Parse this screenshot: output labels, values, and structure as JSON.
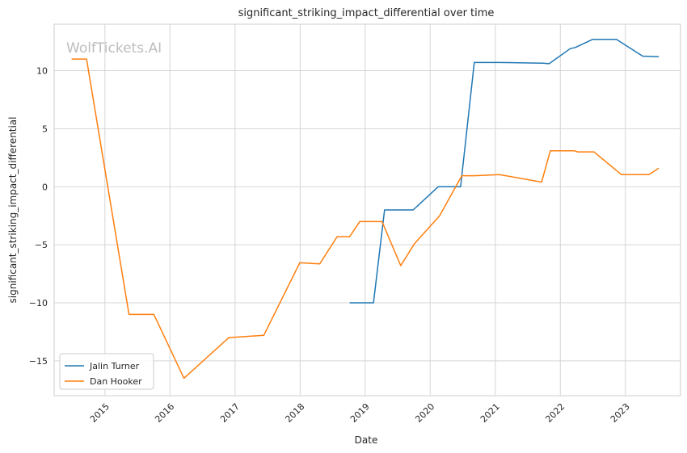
{
  "chart_data": {
    "type": "line",
    "title": "significant_striking_impact_differential over time",
    "xlabel": "Date",
    "ylabel": "significant_striking_impact_differential",
    "watermark": "WolfTickets.AI",
    "xlim": [
      "2014-03-22",
      "2023-11-07"
    ],
    "ylim": [
      -18.0,
      14.0
    ],
    "x_ticks": [
      "2015",
      "2016",
      "2017",
      "2018",
      "2019",
      "2020",
      "2021",
      "2022",
      "2023"
    ],
    "y_ticks": [
      -15,
      -10,
      -5,
      0,
      5,
      10
    ],
    "grid": true,
    "legend_position": "lower-left",
    "series": [
      {
        "name": "Jalin Turner",
        "color": "#1f77b4",
        "points": [
          [
            "2018-10-06",
            -10.0
          ],
          [
            "2019-02-17",
            -10.0
          ],
          [
            "2019-04-20",
            -2.0
          ],
          [
            "2019-09-28",
            -2.0
          ],
          [
            "2020-02-15",
            0.0
          ],
          [
            "2020-06-20",
            0.0
          ],
          [
            "2020-09-05",
            10.7
          ],
          [
            "2021-01-20",
            10.7
          ],
          [
            "2021-09-25",
            10.65
          ],
          [
            "2021-10-30",
            10.6
          ],
          [
            "2022-02-26",
            11.9
          ],
          [
            "2022-03-26",
            12.0
          ],
          [
            "2022-07-02",
            12.7
          ],
          [
            "2022-11-12",
            12.7
          ],
          [
            "2023-04-08",
            11.25
          ],
          [
            "2023-07-08",
            11.2
          ]
        ]
      },
      {
        "name": "Dan Hooker",
        "color": "#ff7f0e",
        "points": [
          [
            "2014-06-28",
            11.0
          ],
          [
            "2014-09-20",
            11.0
          ],
          [
            "2015-05-16",
            -11.0
          ],
          [
            "2015-10-03",
            -11.0
          ],
          [
            "2016-03-20",
            -16.5
          ],
          [
            "2016-11-27",
            -13.0
          ],
          [
            "2017-06-11",
            -12.8
          ],
          [
            "2017-12-30",
            -6.55
          ],
          [
            "2018-04-21",
            -6.65
          ],
          [
            "2018-07-28",
            -4.3
          ],
          [
            "2018-10-06",
            -4.3
          ],
          [
            "2018-12-02",
            -3.0
          ],
          [
            "2019-04-06",
            -3.0
          ],
          [
            "2019-07-20",
            -6.8
          ],
          [
            "2019-10-05",
            -4.9
          ],
          [
            "2020-02-23",
            -2.5
          ],
          [
            "2020-06-27",
            0.95
          ],
          [
            "2020-09-05",
            0.95
          ],
          [
            "2021-01-24",
            1.05
          ],
          [
            "2021-09-18",
            0.4
          ],
          [
            "2021-11-06",
            3.1
          ],
          [
            "2022-03-19",
            3.1
          ],
          [
            "2022-04-09",
            3.0
          ],
          [
            "2022-07-09",
            3.0
          ],
          [
            "2022-12-10",
            1.05
          ],
          [
            "2023-05-13",
            1.05
          ],
          [
            "2023-07-08",
            1.6
          ]
        ]
      }
    ]
  }
}
